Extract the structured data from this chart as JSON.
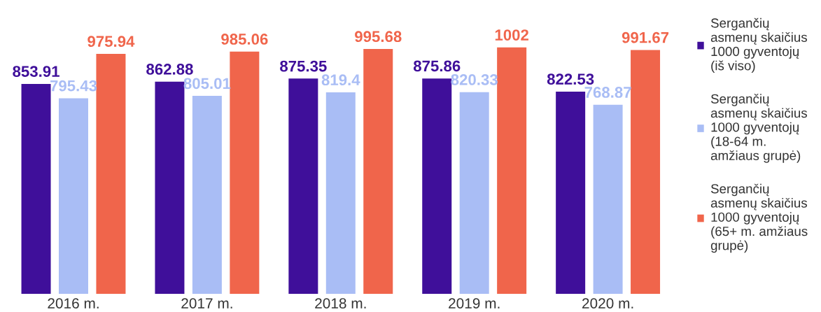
{
  "chart_data": {
    "type": "bar",
    "categories": [
      "2016 m.",
      "2017 m.",
      "2018 m.",
      "2019 m.",
      "2020 m."
    ],
    "series": [
      {
        "name": "Sergančių\nasmenų skaičius\n1000 gyventojų\n(iš viso)",
        "color": "#3f0f9a",
        "values": [
          853.91,
          862.88,
          875.35,
          875.86,
          822.53
        ]
      },
      {
        "name": "Sergančių\nasmenų skaičius\n1000 gyventojų\n(18-64 m.\namžiaus grupė)",
        "color": "#a9bdf5",
        "values": [
          795.43,
          805.01,
          819.4,
          820.33,
          768.87
        ]
      },
      {
        "name": "Sergančių\nasmenų skaičius\n1000 gyventojų\n(65+ m. amžiaus\ngrupė)",
        "color": "#f0654b",
        "values": [
          975.94,
          985.06,
          995.68,
          1002,
          991.67
        ]
      }
    ],
    "data_labels": true,
    "legend": "right",
    "grid": false
  }
}
